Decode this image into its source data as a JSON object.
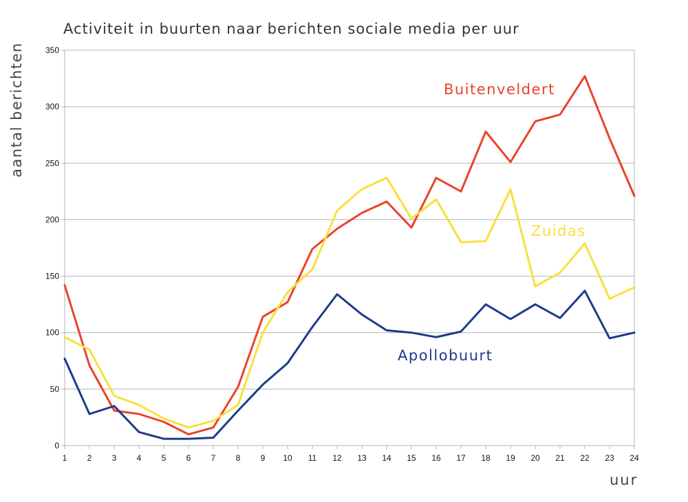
{
  "chart_data": {
    "type": "line",
    "title": "Activiteit in buurten naar berichten sociale media per uur",
    "xlabel": "uur",
    "ylabel": "aantal berichten",
    "x": [
      1,
      2,
      3,
      4,
      5,
      6,
      7,
      8,
      9,
      10,
      11,
      12,
      13,
      14,
      15,
      16,
      17,
      18,
      19,
      20,
      21,
      22,
      23,
      24
    ],
    "ylim": [
      0,
      350
    ],
    "yticks": [
      0,
      50,
      100,
      150,
      200,
      250,
      300,
      350
    ],
    "grid": true,
    "series": [
      {
        "name": "Buitenveldert",
        "color": "#e8432a",
        "values": [
          142,
          71,
          31,
          28,
          21,
          10,
          16,
          52,
          114,
          127,
          174,
          192,
          206,
          216,
          193,
          237,
          225,
          278,
          251,
          287,
          293,
          327,
          272,
          221
        ]
      },
      {
        "name": "Zuidas",
        "color": "#f8e03c",
        "values": [
          96,
          85,
          44,
          36,
          24,
          16,
          22,
          36,
          100,
          136,
          156,
          208,
          227,
          237,
          201,
          218,
          180,
          181,
          227,
          141,
          153,
          179,
          130,
          140
        ]
      },
      {
        "name": "Apollobuurt",
        "color": "#1b3a8a",
        "values": [
          77,
          28,
          35,
          12,
          6,
          6,
          7,
          31,
          54,
          73,
          105,
          134,
          116,
          102,
          100,
          96,
          101,
          125,
          112,
          125,
          113,
          137,
          95,
          100
        ]
      }
    ]
  }
}
